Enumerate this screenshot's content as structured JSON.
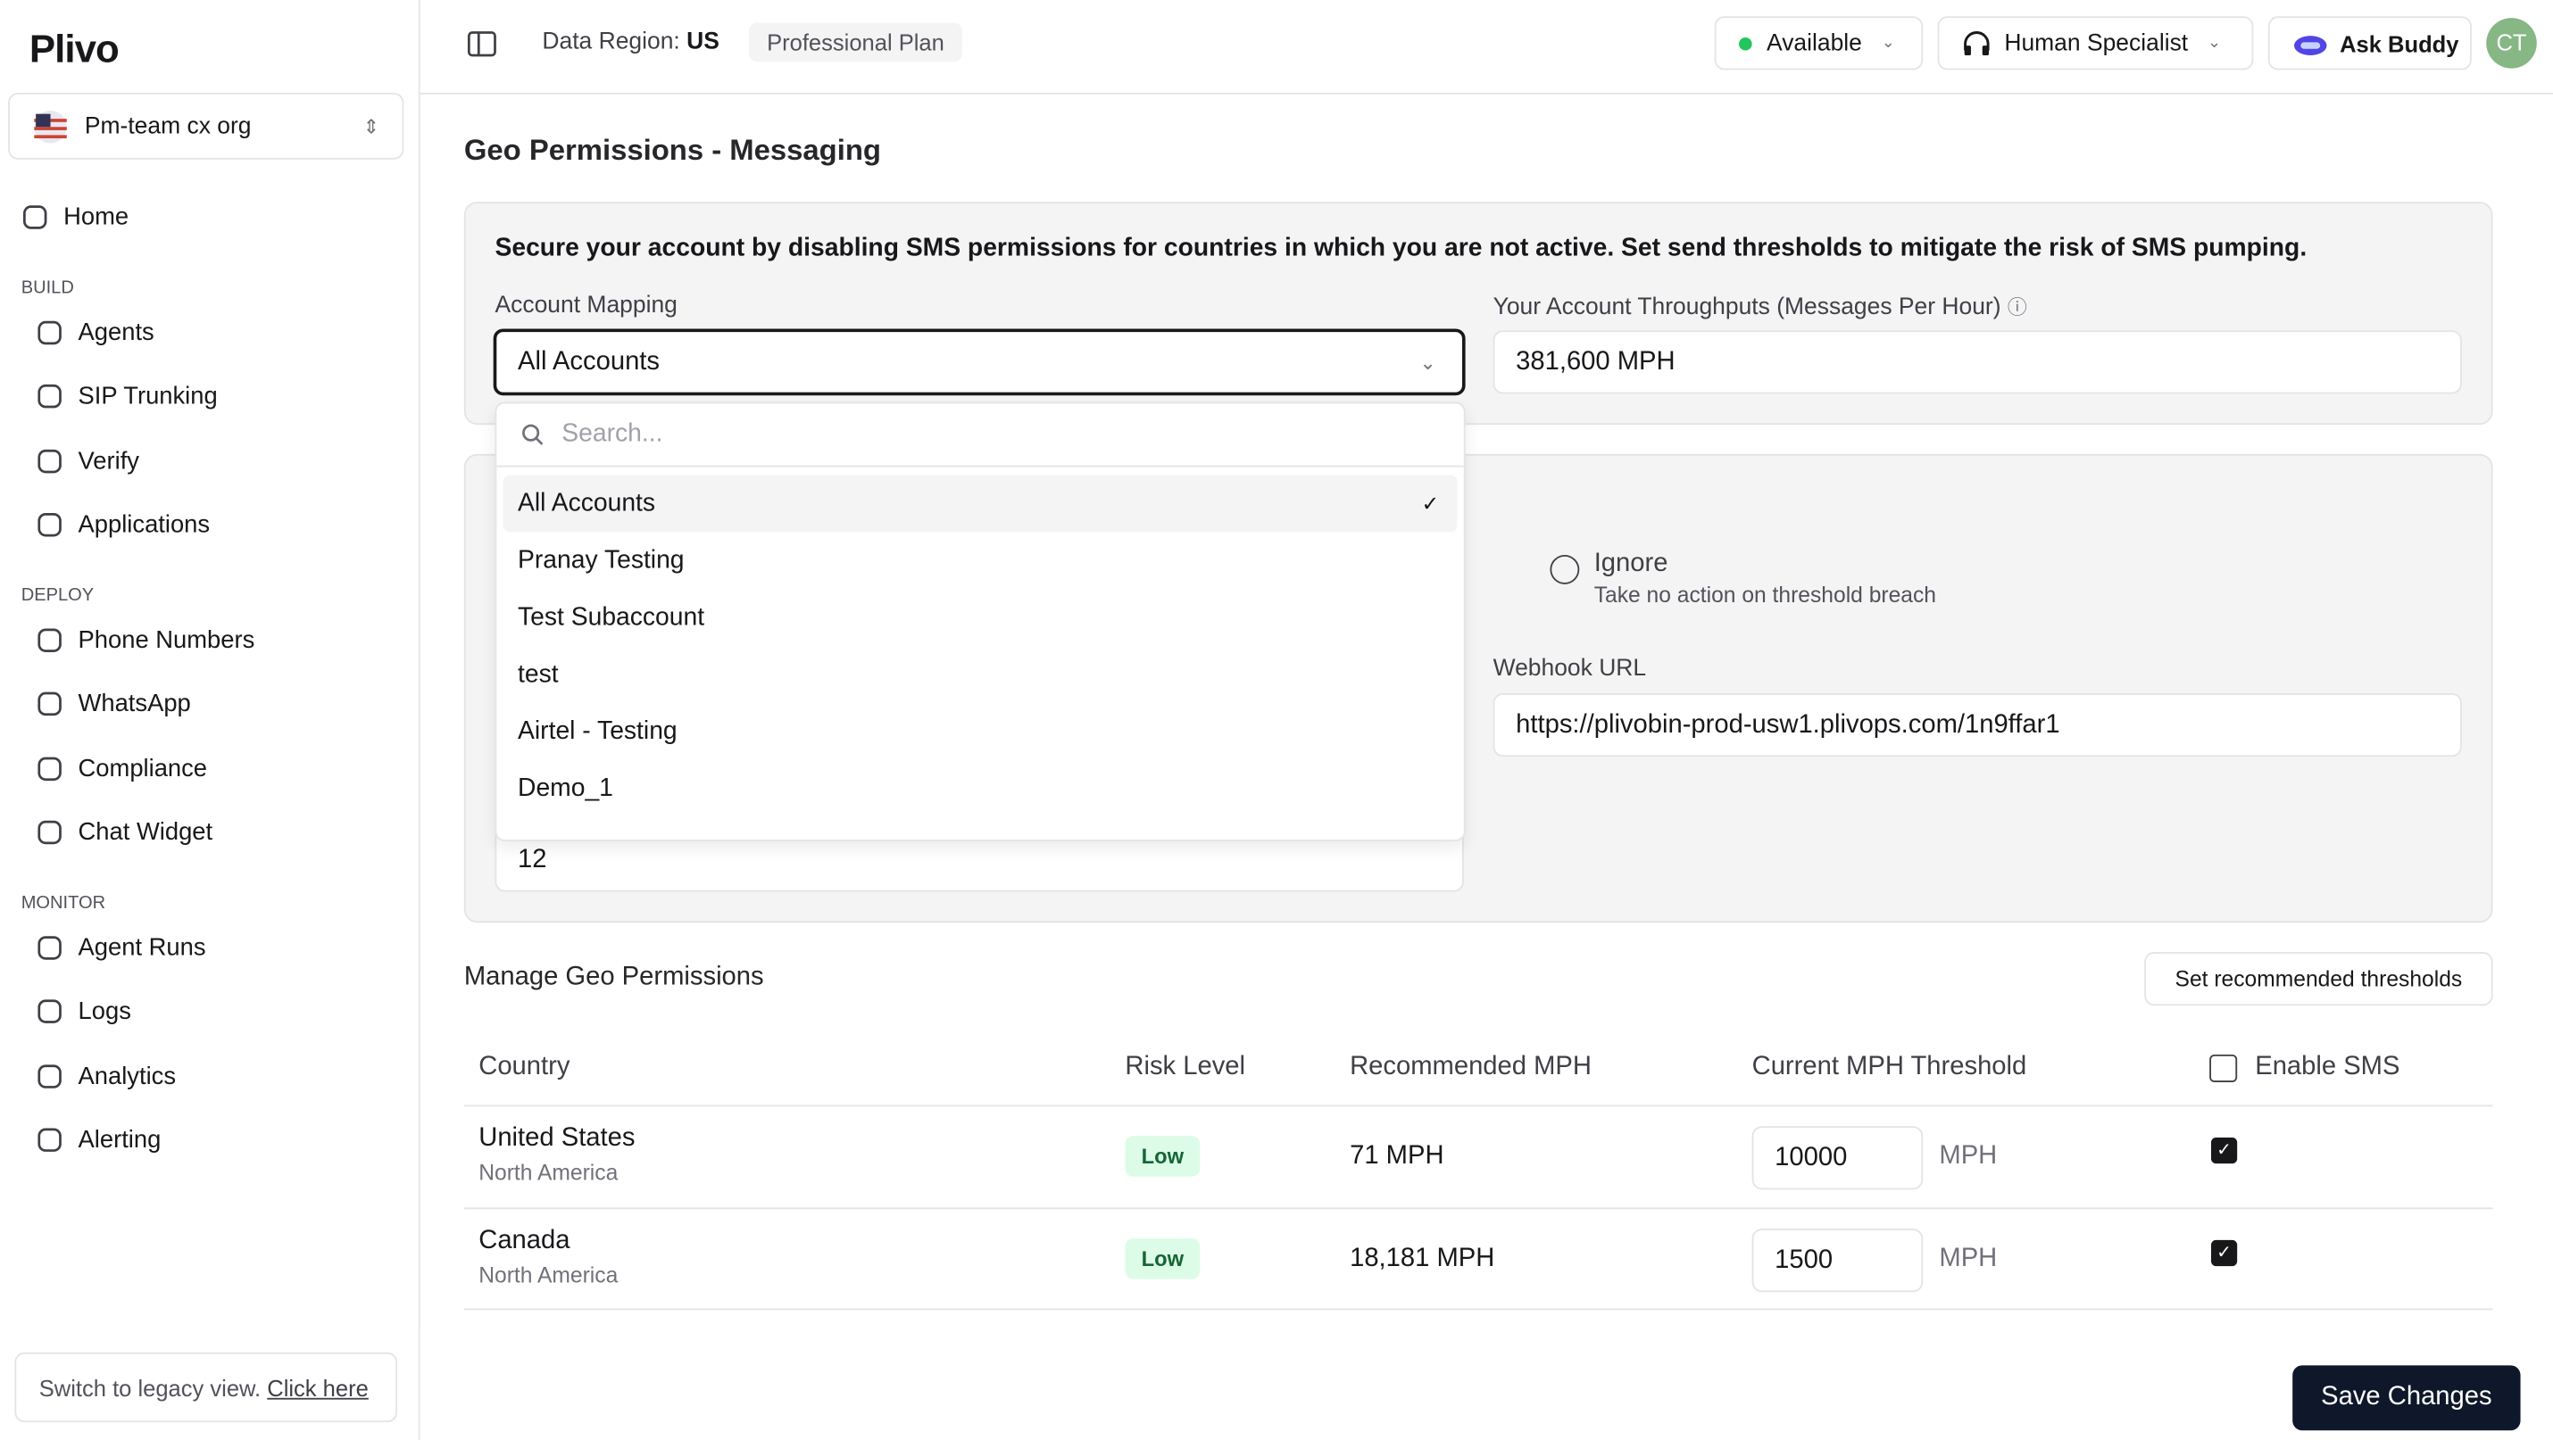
{
  "sidebar": {
    "logo": "Plivo",
    "org": "Pm-team cx org",
    "home": "Home",
    "sections": [
      {
        "label": "BUILD",
        "items": [
          "Agents",
          "SIP Trunking",
          "Verify",
          "Applications"
        ]
      },
      {
        "label": "DEPLOY",
        "items": [
          "Phone Numbers",
          "WhatsApp",
          "Compliance",
          "Chat Widget"
        ]
      },
      {
        "label": "MONITOR",
        "items": [
          "Agent Runs",
          "Logs",
          "Analytics",
          "Alerting"
        ]
      }
    ],
    "legacy_text": "Switch to legacy view.",
    "legacy_link": "Click here"
  },
  "topbar": {
    "region_label": "Data Region:",
    "region": "US",
    "plan": "Professional Plan",
    "status": "Available",
    "role": "Human Specialist",
    "buddy": "Ask Buddy",
    "avatar": "CT"
  },
  "page": {
    "title": "Geo Permissions - Messaging",
    "notice": "Secure your account by disabling SMS permissions for countries in which you are not active. Set send thresholds to mitigate the risk of SMS pumping.",
    "account_mapping_label": "Account Mapping",
    "account_selected": "All Accounts",
    "throughput_label": "Your Account Throughputs (Messages Per Hour)",
    "throughput_value": "381,600 MPH",
    "dropdown": {
      "search_placeholder": "Search...",
      "options": [
        "All Accounts",
        "Pranay Testing",
        "Test Subaccount",
        "test",
        "Airtel - Testing",
        "Demo_1"
      ]
    },
    "ignore_label": "Ignore",
    "ignore_desc": "Take no action on threshold breach",
    "webhook_label": "Webhook URL",
    "webhook_url": "https://plivobin-prod-usw1.plivops.com/1n9ffar1",
    "field_value": "12"
  },
  "geo": {
    "title": "Manage Geo Permissions",
    "recommend_button": "Set recommended thresholds",
    "columns": [
      "Country",
      "Risk Level",
      "Recommended MPH",
      "Current MPH Threshold",
      "Enable SMS"
    ],
    "rows": [
      {
        "country": "United States",
        "region": "North America",
        "risk": "Low",
        "recommended": "71 MPH",
        "threshold": "10000",
        "unit": "MPH",
        "enabled": true
      },
      {
        "country": "Canada",
        "region": "North America",
        "risk": "Low",
        "recommended": "18,181 MPH",
        "threshold": "1500",
        "unit": "MPH",
        "enabled": true
      }
    ]
  },
  "save_button": "Save Changes"
}
